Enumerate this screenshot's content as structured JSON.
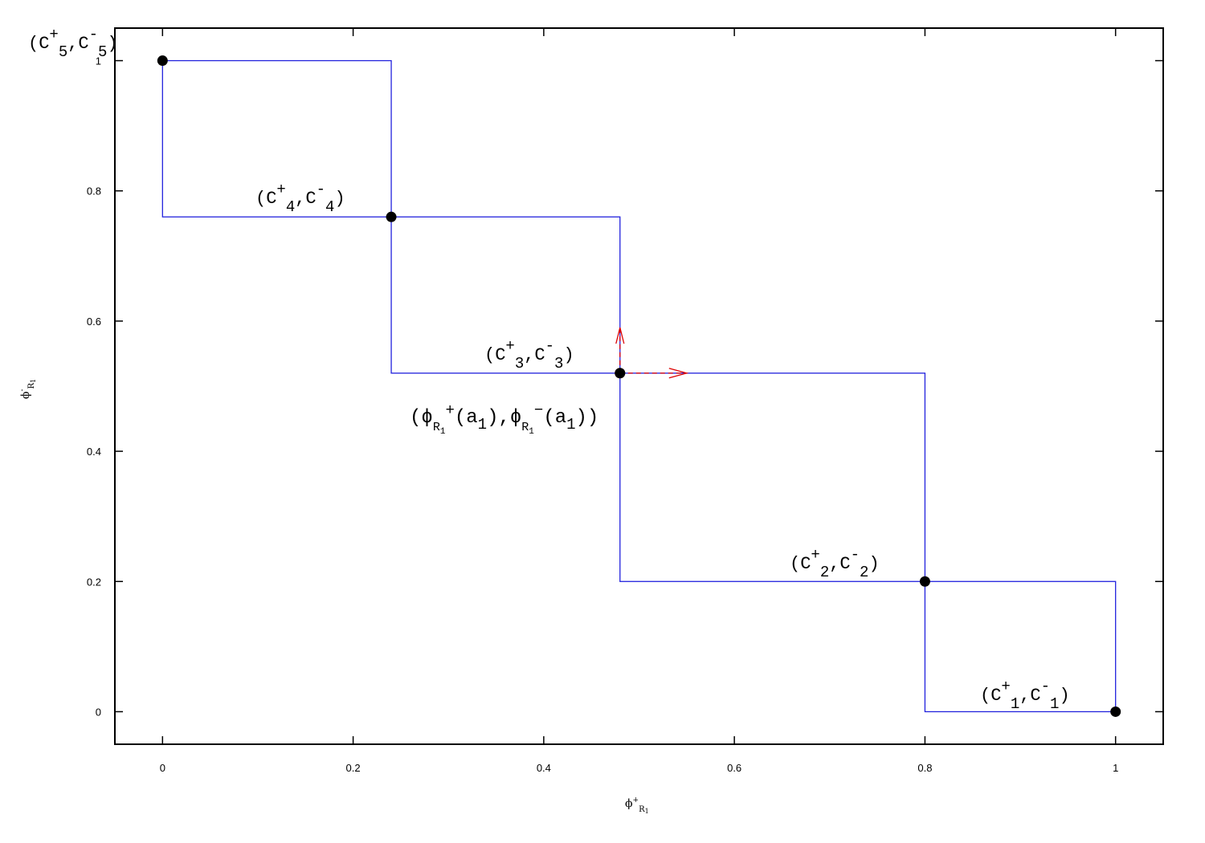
{
  "chart_data": {
    "type": "line",
    "xlim": [
      -0.05,
      1.05
    ],
    "ylim": [
      -0.05,
      1.05
    ],
    "x_ticks": [
      "0",
      "0.2",
      "0.4",
      "0.6",
      "0.8",
      "1"
    ],
    "y_ticks": [
      "0",
      "0.2",
      "0.4",
      "0.6",
      "0.8",
      "1"
    ],
    "xlabel": {
      "main": "ϕ",
      "sup": "+",
      "sub": "R",
      "subsub": "1"
    },
    "ylabel": {
      "main": "ϕ",
      "sup": "-",
      "sub": "R",
      "subsub": "1"
    },
    "grid": false,
    "boxes": [
      {
        "x0": 0.0,
        "x1": 0.24,
        "y0": 0.76,
        "y1": 1.0
      },
      {
        "x0": 0.24,
        "x1": 0.48,
        "y0": 0.52,
        "y1": 0.76
      },
      {
        "x0": 0.48,
        "x1": 0.8,
        "y0": 0.2,
        "y1": 0.52
      },
      {
        "x0": 0.8,
        "x1": 1.0,
        "y0": 0.0,
        "y1": 0.2
      }
    ],
    "box_color": "#2222dd",
    "points": [
      {
        "x": 1.0,
        "y": 0.0,
        "label": "(C+1,C-1)",
        "text": {
          "p1": "(C",
          "sup1": "+",
          "sub1": "1",
          "p2": ",C",
          "sup2": "-",
          "sub2": "1",
          "p3": ")"
        }
      },
      {
        "x": 0.8,
        "y": 0.2,
        "label": "(C+2,C-2)",
        "text": {
          "p1": "(C",
          "sup1": "+",
          "sub1": "2",
          "p2": ",C",
          "sup2": "-",
          "sub2": "2",
          "p3": ")"
        }
      },
      {
        "x": 0.48,
        "y": 0.52,
        "label": "(C+3,C-3)",
        "text": {
          "p1": "(C",
          "sup1": "+",
          "sub1": "3",
          "p2": ",C",
          "sup2": "-",
          "sub2": "3",
          "p3": ")"
        }
      },
      {
        "x": 0.24,
        "y": 0.76,
        "label": "(C+4,C-4)",
        "text": {
          "p1": "(C",
          "sup1": "+",
          "sub1": "4",
          "p2": ",C",
          "sup2": "-",
          "sub2": "4",
          "p3": ")"
        }
      },
      {
        "x": 0.0,
        "y": 1.0,
        "label": "(C+5,C-5)",
        "text": {
          "p1": "(C",
          "sup1": "+",
          "sub1": "5",
          "p2": ",C",
          "sup2": "-",
          "sub2": "5",
          "p3": ")"
        }
      }
    ],
    "point_color": "#000000",
    "highlight": {
      "x": 0.48,
      "y": 0.52,
      "color": "#dd0000",
      "arrow_x_to": 0.55,
      "arrow_y_to": 0.59,
      "label": "(ϕR1+(a1),ϕR1-(a1))",
      "text": {
        "open": "(ϕ",
        "sub_a": "R",
        "subsub_a": "1",
        "sup_a": "+",
        "arg_a": "(a",
        "argsub_a": "1",
        "close_a": "),ϕ",
        "sub_b": "R",
        "subsub_b": "1",
        "sup_b": "−",
        "arg_b": "(a",
        "argsub_b": "1",
        "close_b": "))"
      }
    }
  }
}
